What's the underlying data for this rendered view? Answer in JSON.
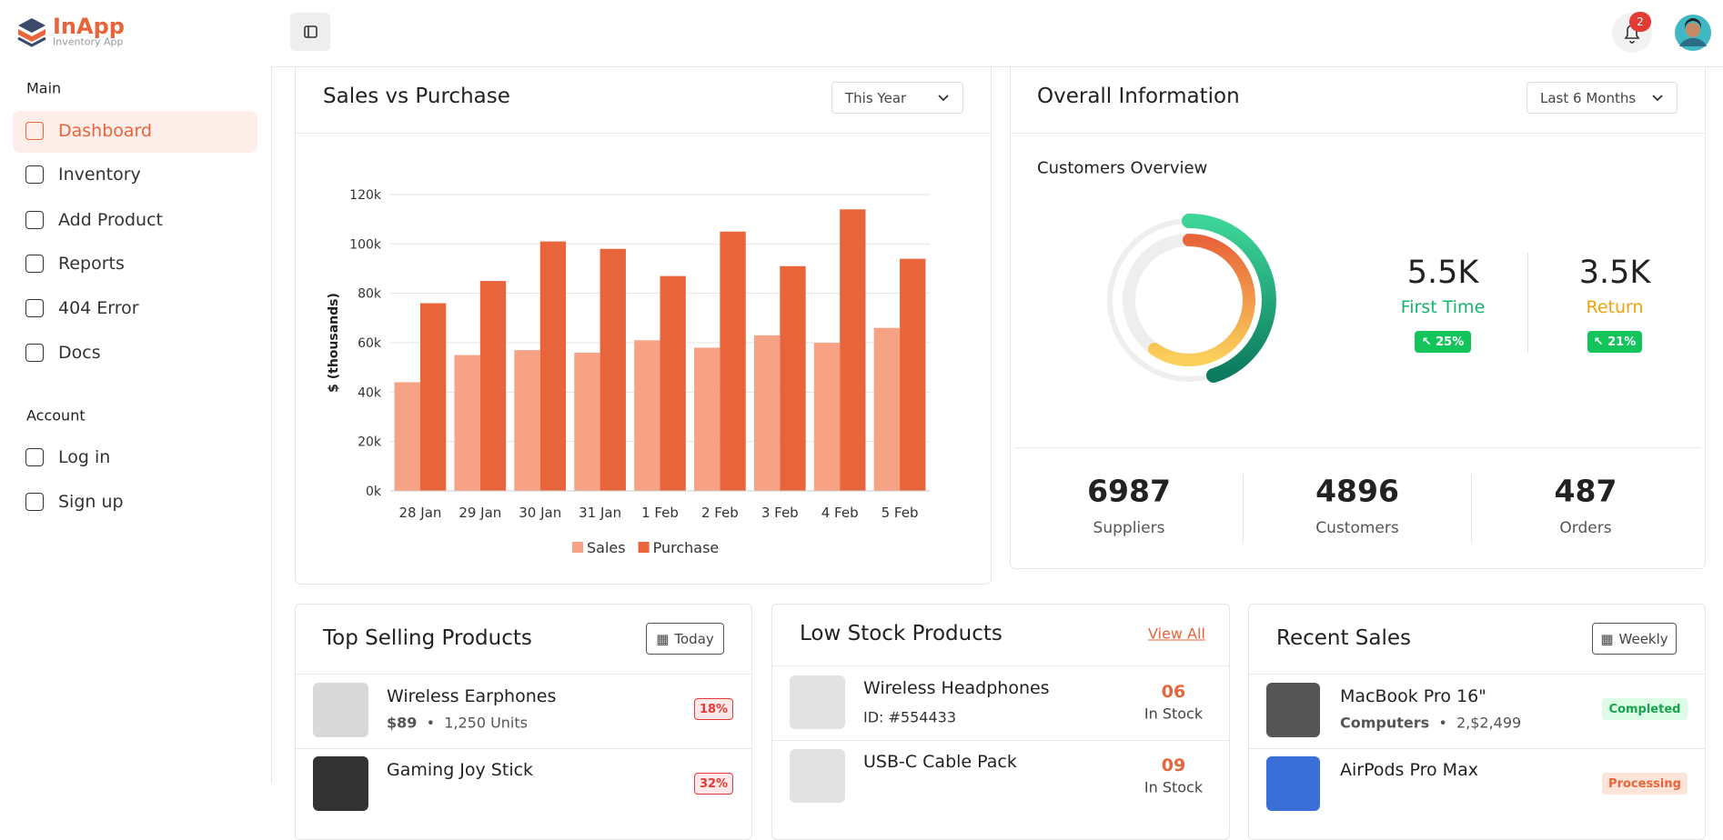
{
  "brand": {
    "name": "InApp",
    "tagline": "Inventory App"
  },
  "notifications": "2",
  "sidebar": {
    "sections": [
      {
        "title": "Main",
        "items": [
          "Dashboard",
          "Inventory",
          "Add Product",
          "Reports",
          "404 Error",
          "Docs"
        ]
      },
      {
        "title": "Account",
        "items": [
          "Log in",
          "Sign up"
        ]
      }
    ]
  },
  "sales_card": {
    "title": "Sales vs Purchase",
    "filter": "This Year"
  },
  "chart_data": {
    "type": "bar",
    "ylabel": "$ (thousands)",
    "categories": [
      "28 Jan",
      "29 Jan",
      "30 Jan",
      "31 Jan",
      "1 Feb",
      "2 Feb",
      "3 Feb",
      "4 Feb",
      "5 Feb"
    ],
    "series": [
      {
        "name": "Sales",
        "color": "#f7a285",
        "values": [
          44000,
          55000,
          57000,
          56000,
          61000,
          58000,
          63000,
          60000,
          66000
        ]
      },
      {
        "name": "Purchase",
        "color": "#e8643a",
        "values": [
          76000,
          85000,
          101000,
          98000,
          87000,
          105000,
          91000,
          114000,
          94000
        ]
      }
    ],
    "ylim": [
      0,
      120000
    ],
    "yticks": [
      {
        "value": 0,
        "label": "0k"
      },
      {
        "value": 20000,
        "label": "20k"
      },
      {
        "value": 40000,
        "label": "40k"
      },
      {
        "value": 60000,
        "label": "60k"
      },
      {
        "value": 80000,
        "label": "80k"
      },
      {
        "value": 100000,
        "label": "100k"
      },
      {
        "value": 120000,
        "label": "120k"
      }
    ],
    "grid": true,
    "legend": "bottom"
  },
  "overview": {
    "title": "Overall Information",
    "filter": "Last 6 Months",
    "subtitle": "Customers Overview",
    "stats": [
      {
        "value": "5.5K",
        "label": "First Time",
        "change": "25%"
      },
      {
        "value": "3.5K",
        "label": "Return",
        "change": "21%"
      }
    ],
    "totals": [
      {
        "value": "6987",
        "label": "Suppliers"
      },
      {
        "value": "4896",
        "label": "Customers"
      },
      {
        "value": "487",
        "label": "Orders"
      }
    ]
  },
  "top_selling": {
    "title": "Top Selling Products",
    "filter": "Today",
    "items": [
      {
        "name": "Wireless Earphones",
        "price": "$89",
        "units": "1,250 Units",
        "badge": "18%"
      },
      {
        "name": "Gaming Joy Stick",
        "badge": "32%"
      }
    ]
  },
  "low_stock": {
    "title": "Low Stock Products",
    "link": "View All",
    "items": [
      {
        "name": "Wireless Headphones",
        "id": "ID: #554433",
        "count": "06",
        "status": "In Stock"
      },
      {
        "name": "USB-C Cable Pack",
        "count": "09",
        "status": "In Stock"
      }
    ]
  },
  "recent_sales": {
    "title": "Recent Sales",
    "filter": "Weekly",
    "items": [
      {
        "name": "MacBook Pro 16\"",
        "category": "Computers",
        "price": "2,$2,499",
        "status": "Completed"
      },
      {
        "name": "AirPods Pro Max",
        "status": "Processing"
      }
    ]
  }
}
